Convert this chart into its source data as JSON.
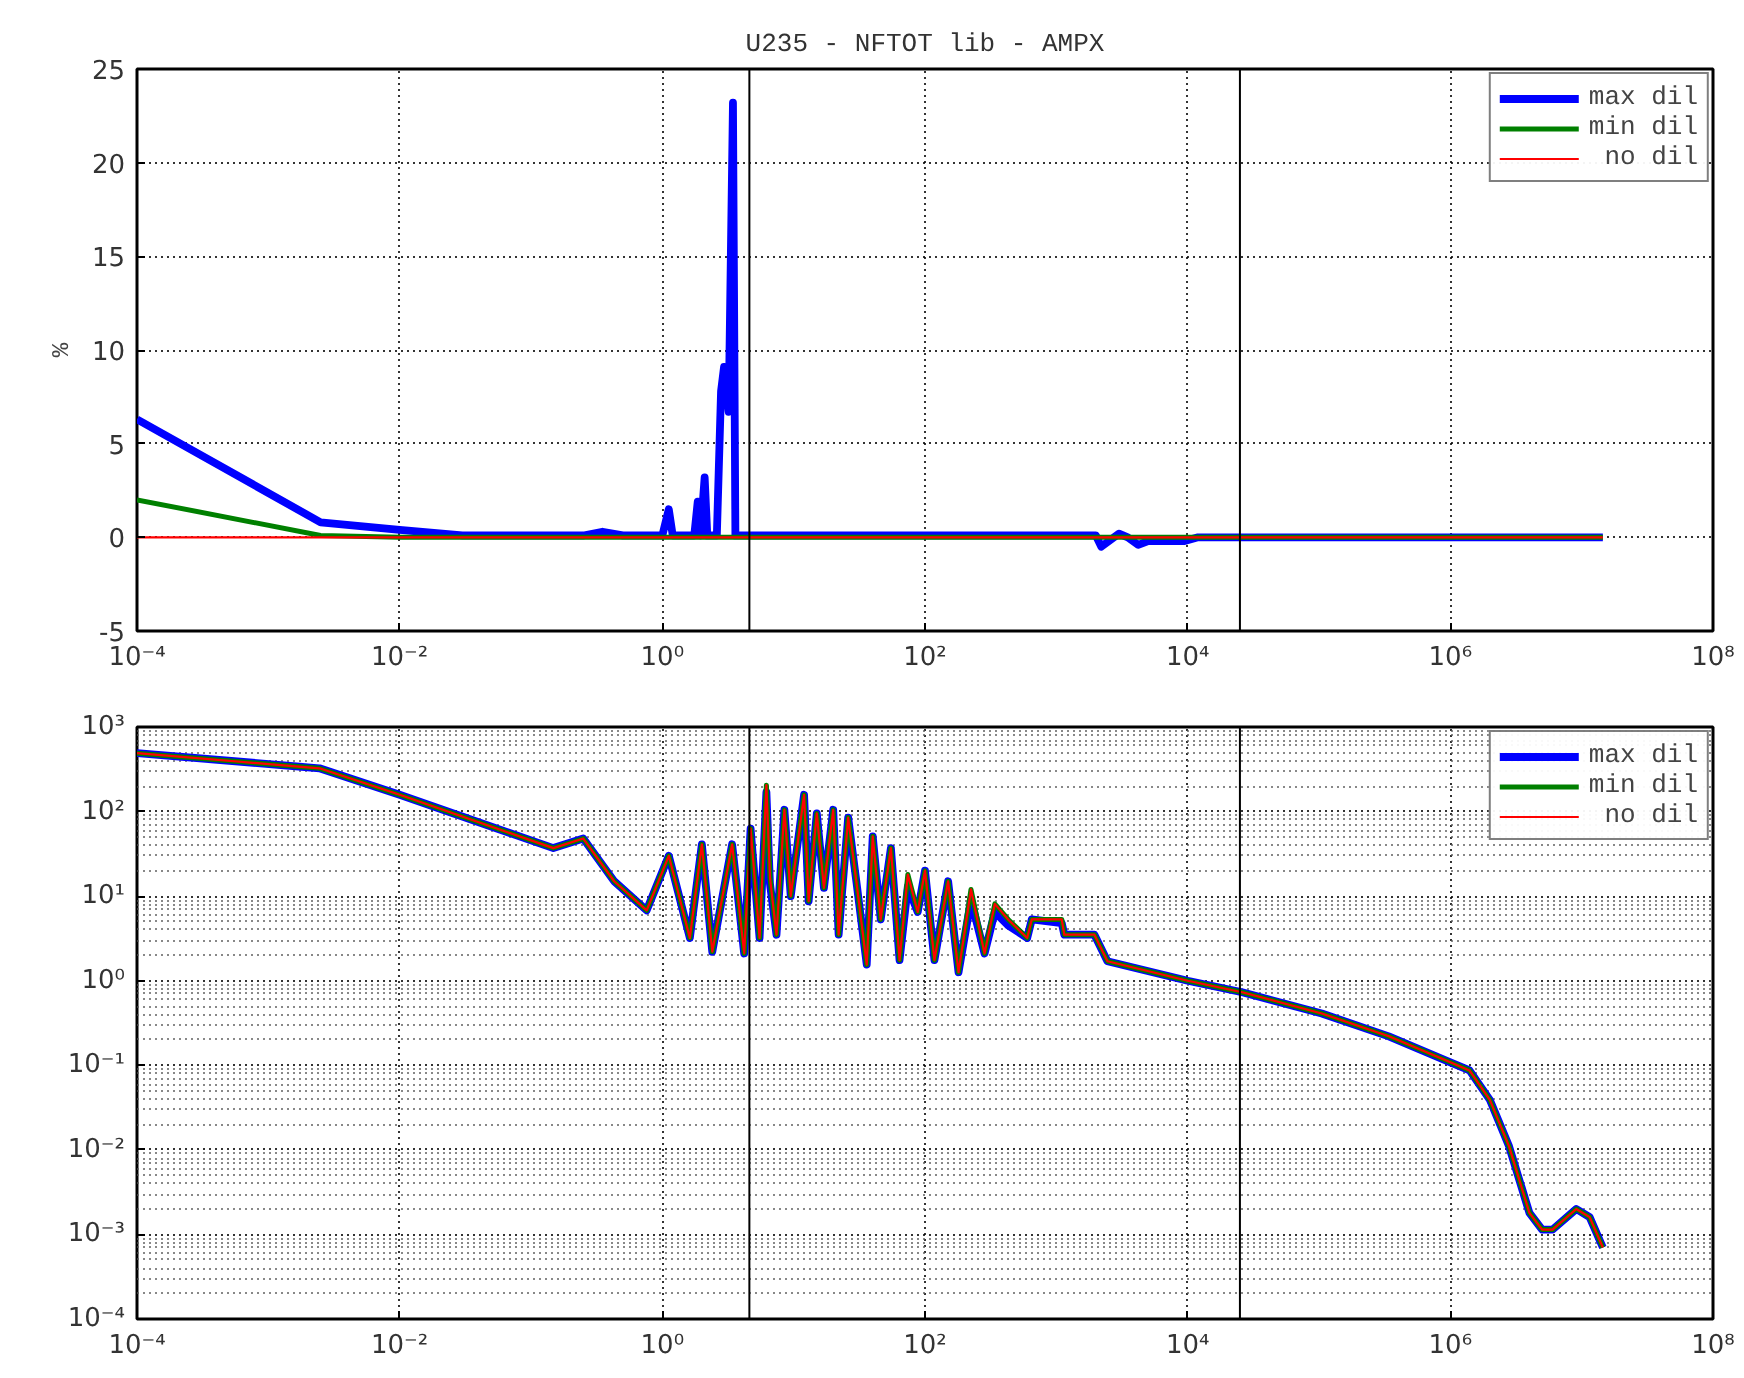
{
  "chart_data": [
    {
      "type": "line",
      "title": "U235 - NFTOT lib - AMPX",
      "ylabel": "%",
      "log": "x",
      "grid": true,
      "legend": "top right",
      "line_style": "solid",
      "marker": "none",
      "xlim": [
        0.0001,
        100000000
      ],
      "xticks": [
        {
          "value": 0.0001,
          "label": "10⁻⁴"
        },
        {
          "value": 0.01,
          "label": "10⁻²"
        },
        {
          "value": 1,
          "label": "10⁰"
        },
        {
          "value": 100,
          "label": "10²"
        },
        {
          "value": 10000,
          "label": "10⁴"
        },
        {
          "value": 1000000,
          "label": "10⁶"
        },
        {
          "value": 100000000,
          "label": "10⁸"
        }
      ],
      "ylim": [
        -5,
        25
      ],
      "yticks": [
        -5,
        0,
        5,
        10,
        15,
        20,
        25
      ],
      "ref_lines": [
        {
          "axis": "x",
          "value": 4.6,
          "label": null,
          "color": "#000000"
        },
        {
          "axis": "x",
          "value": 25000,
          "label": null,
          "color": "#000000"
        }
      ],
      "series": [
        {
          "name": "max dil",
          "color": "#0000ff",
          "x": [
            0.0001,
            0.0025,
            0.01,
            0.03,
            0.25,
            0.35,
            0.5,
            1.0,
            1.12,
            1.2,
            1.75,
            1.86,
            1.95,
            2.1,
            2.2,
            2.6,
            2.8,
            2.95,
            3.2,
            3.45,
            3.6,
            4.6,
            100,
            2000,
            2200,
            3000,
            3500,
            4200,
            5000,
            9500,
            12000,
            14500000
          ],
          "values": [
            6.3,
            0.8,
            0.4,
            0.1,
            0.1,
            0.3,
            0.1,
            0.1,
            1.5,
            0.1,
            0.1,
            1.9,
            0.1,
            3.2,
            0.1,
            0.1,
            7.8,
            9.1,
            6.7,
            23.2,
            0.1,
            0.1,
            0.1,
            0.1,
            -0.5,
            0.2,
            0,
            -0.4,
            -0.2,
            -0.2,
            0,
            0
          ]
        },
        {
          "name": "min dil",
          "color": "#008000",
          "x": [
            0.0001,
            0.0025,
            0.01,
            14500000
          ],
          "values": [
            2.0,
            0.1,
            0,
            0
          ]
        },
        {
          "name": " no dil",
          "color": "#ff0000",
          "x": [
            0.0001,
            0.0025,
            0.01,
            14500000
          ],
          "values": [
            0,
            0,
            0,
            0
          ]
        }
      ]
    },
    {
      "type": "line",
      "log": "xy",
      "grid": true,
      "legend": "top right",
      "line_style": "solid",
      "marker": "none",
      "xlim": [
        0.0001,
        100000000
      ],
      "xticks": [
        {
          "value": 0.0001,
          "label": "10⁻⁴"
        },
        {
          "value": 0.01,
          "label": "10⁻²"
        },
        {
          "value": 1,
          "label": "10⁰"
        },
        {
          "value": 100,
          "label": "10²"
        },
        {
          "value": 10000,
          "label": "10⁴"
        },
        {
          "value": 1000000,
          "label": "10⁶"
        },
        {
          "value": 100000000,
          "label": "10⁸"
        }
      ],
      "ylim": [
        0.0001,
        1000
      ],
      "yticks": [
        {
          "value": 0.0001,
          "label": "10⁻⁴"
        },
        {
          "value": 0.001,
          "label": "10⁻³"
        },
        {
          "value": 0.01,
          "label": "10⁻²"
        },
        {
          "value": 0.1,
          "label": "10⁻¹"
        },
        {
          "value": 1,
          "label": "10⁰"
        },
        {
          "value": 10,
          "label": "10¹"
        },
        {
          "value": 100,
          "label": "10²"
        },
        {
          "value": 1000,
          "label": "10³"
        }
      ],
      "ref_lines": [
        {
          "axis": "x",
          "value": 4.6,
          "label": null,
          "color": "#000000"
        },
        {
          "axis": "x",
          "value": 25000,
          "label": null,
          "color": "#000000"
        }
      ],
      "series": [
        {
          "name": "max dil",
          "color": "#0000ff",
          "x": [
            0.0001,
            0.00245,
            0.01,
            0.148,
            0.25,
            0.43,
            0.76,
            1.12,
            1.62,
            2.0,
            2.4,
            3.4,
            4.2,
            4.7,
            5.5,
            6.2,
            6.6,
            7.4,
            8.5,
            9.5,
            10.7,
            12,
            13,
            15,
            17,
            20,
            22,
            26,
            30,
            36,
            40,
            46,
            55,
            64,
            74,
            88,
            100,
            118,
            150,
            180,
            224,
            284,
            340,
            430,
            600,
            650,
            1100,
            1150,
            1950,
            2450,
            10000,
            26000,
            105000,
            340000,
            980000,
            1400000,
            2000000,
            2800000,
            4000000,
            5000000,
            6000000,
            9100000,
            11500000,
            14500000
          ],
          "values": [
            490,
            325,
            158,
            37,
            48,
            15,
            6.8,
            30,
            3.2,
            41,
            2.2,
            41,
            2.1,
            63,
            3.2,
            170,
            14,
            3.5,
            105,
            10,
            41,
            158,
            8.7,
            95,
            12.5,
            105,
            3.5,
            85,
            15,
            1.55,
            51,
            5.3,
            37,
            1.75,
            13,
            6.5,
            20,
            1.75,
            15,
            1.26,
            9,
            2.1,
            6.5,
            4.5,
            3.2,
            5.3,
            4.8,
            3.5,
            3.5,
            1.7,
            1.0,
            0.73,
            0.41,
            0.22,
            0.11,
            0.087,
            0.039,
            0.011,
            0.0018,
            0.00114,
            0.00114,
            0.002,
            0.0016,
            0.0007
          ]
        },
        {
          "name": "min dil",
          "color": "#008000",
          "x": [
            0.0001,
            0.00245,
            0.01,
            0.148,
            0.25,
            0.43,
            0.76,
            1.12,
            1.62,
            2.0,
            2.4,
            3.4,
            4.2,
            4.7,
            5.5,
            6.2,
            6.6,
            7.4,
            8.5,
            9.5,
            10.7,
            12,
            13,
            15,
            17,
            20,
            22,
            26,
            30,
            36,
            40,
            46,
            55,
            64,
            74,
            88,
            100,
            118,
            150,
            180,
            224,
            284,
            340,
            430,
            600,
            650,
            1100,
            1150,
            1950,
            2450,
            10000,
            26000,
            105000,
            340000,
            980000,
            1400000,
            2000000,
            2800000,
            4000000,
            5000000,
            6000000,
            9100000,
            11500000,
            14500000
          ],
          "values": [
            490,
            325,
            158,
            37,
            48,
            15,
            6.8,
            30,
            3.2,
            41,
            2.2,
            41,
            2.1,
            63,
            3.2,
            205,
            16.6,
            3.5,
            105,
            10,
            41,
            158,
            8.7,
            95,
            12.5,
            105,
            3.5,
            85,
            15,
            1.55,
            51,
            5.3,
            37,
            1.75,
            18,
            6.5,
            20,
            1.75,
            15,
            1.26,
            12,
            2.1,
            8.1,
            5.3,
            3.2,
            5.3,
            5.3,
            3.5,
            3.5,
            1.7,
            1.0,
            0.73,
            0.41,
            0.22,
            0.11,
            0.087,
            0.039,
            0.011,
            0.0018,
            0.00114,
            0.00114,
            0.002,
            0.0016,
            0.0007
          ]
        },
        {
          "name": " no dil",
          "color": "#ff0000",
          "x": [
            0.0001,
            0.00245,
            0.01,
            0.148,
            0.25,
            0.43,
            0.76,
            1.12,
            1.62,
            2.0,
            2.4,
            3.4,
            4.2,
            4.7,
            5.5,
            6.2,
            6.6,
            7.4,
            8.5,
            9.5,
            10.7,
            12,
            13,
            15,
            17,
            20,
            22,
            26,
            30,
            36,
            40,
            46,
            55,
            64,
            74,
            88,
            100,
            118,
            150,
            180,
            224,
            284,
            340,
            430,
            600,
            650,
            1100,
            1150,
            1950,
            2450,
            10000,
            26000,
            105000,
            340000,
            980000,
            1400000,
            2000000,
            2800000,
            4000000,
            5000000,
            6000000,
            9100000,
            11500000,
            14500000
          ],
          "values": [
            490,
            325,
            158,
            37,
            48,
            15,
            6.8,
            30,
            3.2,
            41,
            2.2,
            41,
            2.1,
            63,
            3.2,
            205,
            16.6,
            3.5,
            105,
            10,
            41,
            158,
            8.7,
            95,
            12.5,
            105,
            3.5,
            85,
            15,
            1.55,
            51,
            5.3,
            37,
            1.75,
            18,
            6.5,
            20,
            1.75,
            15,
            1.26,
            12,
            2.1,
            8.1,
            5.3,
            3.2,
            5.3,
            5.3,
            3.5,
            3.5,
            1.7,
            1.0,
            0.73,
            0.41,
            0.22,
            0.11,
            0.087,
            0.039,
            0.011,
            0.0018,
            0.00114,
            0.00114,
            0.002,
            0.0016,
            0.0007
          ]
        }
      ]
    }
  ]
}
